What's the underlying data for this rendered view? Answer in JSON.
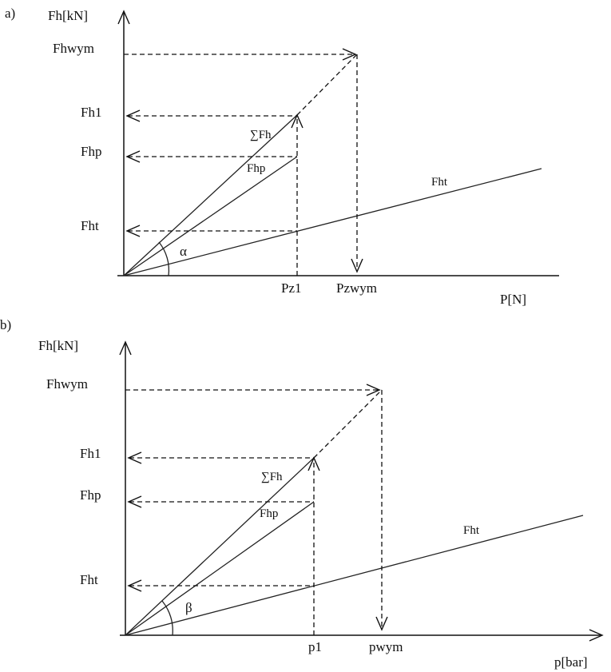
{
  "panels": [
    {
      "panel_label": "a)",
      "y_axis_label": "Fh[kN]",
      "x_axis_label": "P[N]",
      "y_ticks": {
        "fhwym": "Fhwym",
        "fh1": "Fh1",
        "fhp": "Fhp",
        "fht": "Fht"
      },
      "x_ticks": {
        "p1": "Pz1",
        "pwym": "Pzwym"
      },
      "line_labels": {
        "sum": "∑Fh",
        "fhp": "Fhp",
        "fht": "Fht"
      },
      "angle_label": "α"
    },
    {
      "panel_label": "b)",
      "y_axis_label": "Fh[kN]",
      "x_axis_label": "p[bar]",
      "y_ticks": {
        "fhwym": "Fhwym",
        "fh1": "Fh1",
        "fhp": "Fhp",
        "fht": "Fht"
      },
      "x_ticks": {
        "p1": "p1",
        "pwym": "pwym"
      },
      "line_labels": {
        "sum": "∑Fh",
        "fhp": "Fhp",
        "fht": "Fht"
      },
      "angle_label": "β"
    }
  ]
}
